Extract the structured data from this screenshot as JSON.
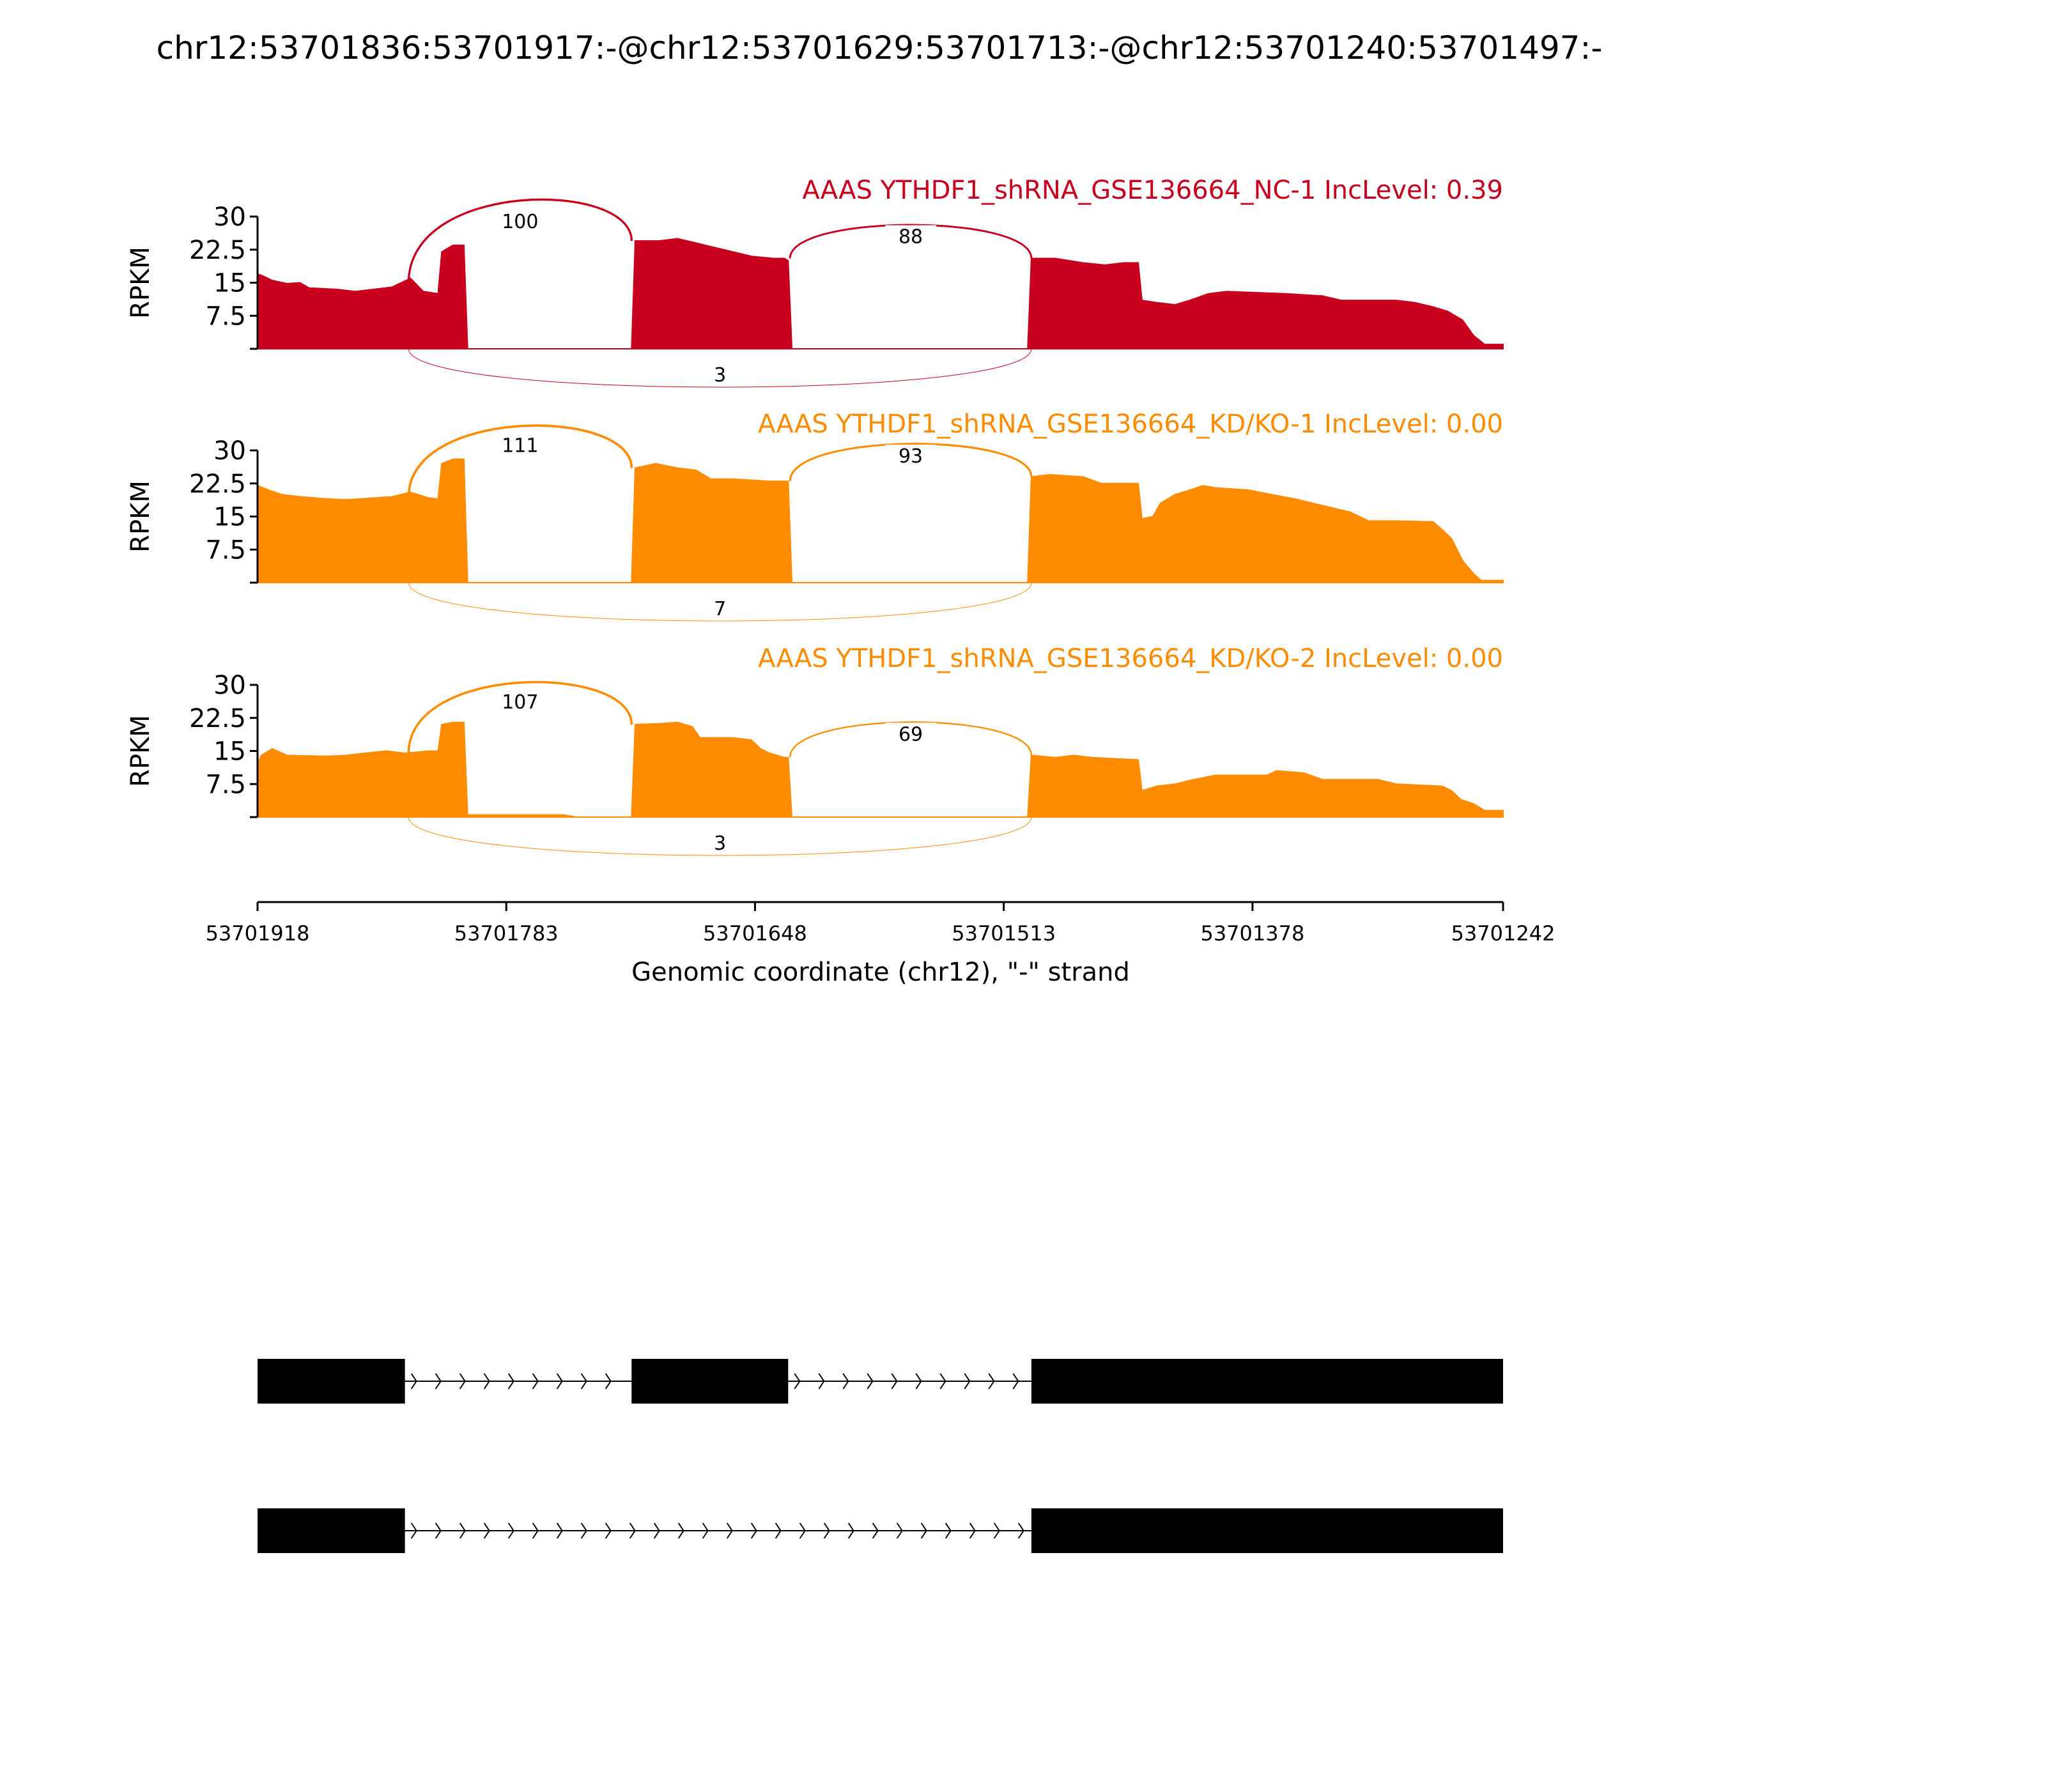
{
  "title": "chr12:53701836:53701917:-@chr12:53701629:53701713:-@chr12:53701240:53701497:-",
  "chart_data": {
    "type": "area",
    "title": "chr12:53701836:53701917:-@chr12:53701629:53701713:-@chr12:53701240:53701497:-",
    "xlabel": "Genomic coordinate (chr12), \"-\" strand",
    "ylabel": "RPKM",
    "xlim": [
      53701918,
      53701242
    ],
    "x_ticks": [
      53701918,
      53701783,
      53701648,
      53701513,
      53701378,
      53701242
    ],
    "x_tick_labels": [
      "53701918",
      "53701783",
      "53701648",
      "53701513",
      "53701378",
      "53701242"
    ],
    "ylim": [
      0,
      30
    ],
    "y_ticks": [
      7.5,
      15,
      22.5,
      30
    ],
    "y_tick_labels": [
      "7.5",
      "15",
      "22.5",
      "30"
    ],
    "exons": [
      {
        "start": 53701918,
        "end": 53701838
      },
      {
        "start": 53701715,
        "end": 53701630
      },
      {
        "start": 53701498,
        "end": 53701242
      }
    ],
    "isoforms": [
      {
        "exons": [
          [
            53701918,
            53701838
          ],
          [
            53701715,
            53701630
          ],
          [
            53701498,
            53701242
          ]
        ]
      },
      {
        "exons": [
          [
            53701918,
            53701838
          ],
          [
            53701498,
            53701242
          ]
        ]
      }
    ],
    "series": [
      {
        "name": "AAAS YTHDF1_shRNA_GSE136664_NC-1 IncLevel: 0.39",
        "color": "#c8001e",
        "coverage": [
          [
            53701918,
            17
          ],
          [
            53701915,
            16.5
          ],
          [
            53701910,
            15.5
          ],
          [
            53701902,
            14.8
          ],
          [
            53701895,
            15
          ],
          [
            53701890,
            13.8
          ],
          [
            53701875,
            13.5
          ],
          [
            53701865,
            13
          ],
          [
            53701855,
            13.5
          ],
          [
            53701845,
            14
          ],
          [
            53701840,
            15
          ],
          [
            53701835,
            16
          ],
          [
            53701828,
            13
          ],
          [
            53701820,
            12.5
          ],
          [
            53701818,
            22
          ],
          [
            53701812,
            23.5
          ],
          [
            53701808,
            23.5
          ],
          [
            53701806,
            23.5
          ],
          [
            53701804,
            0
          ],
          [
            53701715,
            0
          ],
          [
            53701713,
            24.5
          ],
          [
            53701700,
            24.5
          ],
          [
            53701690,
            25
          ],
          [
            53701680,
            24
          ],
          [
            53701670,
            23
          ],
          [
            53701660,
            22
          ],
          [
            53701650,
            21
          ],
          [
            53701638,
            20.5
          ],
          [
            53701632,
            20.5
          ],
          [
            53701630,
            20
          ],
          [
            53701628,
            0
          ],
          [
            53701500,
            0
          ],
          [
            53701498,
            20.5
          ],
          [
            53701485,
            20.5
          ],
          [
            53701470,
            19.5
          ],
          [
            53701458,
            19
          ],
          [
            53701448,
            19.5
          ],
          [
            53701440,
            19.5
          ],
          [
            53701438,
            11
          ],
          [
            53701430,
            10.5
          ],
          [
            53701420,
            10
          ],
          [
            53701412,
            11
          ],
          [
            53701402,
            12.5
          ],
          [
            53701392,
            13
          ],
          [
            53701360,
            12.5
          ],
          [
            53701340,
            12
          ],
          [
            53701330,
            11
          ],
          [
            53701300,
            11
          ],
          [
            53701290,
            10.5
          ],
          [
            53701280,
            9.5
          ],
          [
            53701272,
            8.5
          ],
          [
            53701264,
            6.5
          ],
          [
            53701258,
            3
          ],
          [
            53701252,
            1
          ],
          [
            53701242,
            1
          ]
        ],
        "junctions": [
          {
            "from": 53701836,
            "to": 53701715,
            "count": 100,
            "side": "above"
          },
          {
            "from": 53701629,
            "to": 53701498,
            "count": 88,
            "side": "above"
          },
          {
            "from": 53701836,
            "to": 53701498,
            "count": 3,
            "side": "below"
          }
        ]
      },
      {
        "name": "AAAS YTHDF1_shRNA_GSE136664_KD/KO-1 IncLevel: 0.00",
        "color": "#ff8c00",
        "coverage": [
          [
            53701918,
            22
          ],
          [
            53701912,
            21
          ],
          [
            53701905,
            20
          ],
          [
            53701895,
            19.5
          ],
          [
            53701880,
            19
          ],
          [
            53701870,
            18.8
          ],
          [
            53701855,
            19.2
          ],
          [
            53701845,
            19.5
          ],
          [
            53701835,
            20.5
          ],
          [
            53701825,
            19.2
          ],
          [
            53701820,
            19
          ],
          [
            53701818,
            27
          ],
          [
            53701812,
            28
          ],
          [
            53701808,
            28
          ],
          [
            53701806,
            28
          ],
          [
            53701804,
            0
          ],
          [
            53701715,
            0
          ],
          [
            53701713,
            26
          ],
          [
            53701702,
            27
          ],
          [
            53701690,
            26
          ],
          [
            53701680,
            25.5
          ],
          [
            53701672,
            23.5
          ],
          [
            53701660,
            23.5
          ],
          [
            53701640,
            23
          ],
          [
            53701632,
            23
          ],
          [
            53701630,
            23
          ],
          [
            53701628,
            0
          ],
          [
            53701500,
            0
          ],
          [
            53701498,
            24
          ],
          [
            53701488,
            24.5
          ],
          [
            53701470,
            24
          ],
          [
            53701460,
            22.5
          ],
          [
            53701440,
            22.5
          ],
          [
            53701438,
            14.5
          ],
          [
            53701432,
            15
          ],
          [
            53701428,
            18
          ],
          [
            53701420,
            20
          ],
          [
            53701412,
            21
          ],
          [
            53701405,
            22
          ],
          [
            53701398,
            21.5
          ],
          [
            53701380,
            21
          ],
          [
            53701368,
            20
          ],
          [
            53701355,
            19
          ],
          [
            53701340,
            17.5
          ],
          [
            53701325,
            16
          ],
          [
            53701315,
            14
          ],
          [
            53701300,
            14
          ],
          [
            53701280,
            13.8
          ],
          [
            53701275,
            12
          ],
          [
            53701270,
            10
          ],
          [
            53701264,
            5
          ],
          [
            53701258,
            2
          ],
          [
            53701254,
            0.5
          ],
          [
            53701242,
            0.5
          ]
        ],
        "junctions": [
          {
            "from": 53701836,
            "to": 53701715,
            "count": 111,
            "side": "above"
          },
          {
            "from": 53701629,
            "to": 53701498,
            "count": 93,
            "side": "above"
          },
          {
            "from": 53701836,
            "to": 53701498,
            "count": 7,
            "side": "below"
          }
        ]
      },
      {
        "name": "AAAS YTHDF1_shRNA_GSE136664_KD/KO-2 IncLevel: 0.00",
        "color": "#ff8c00",
        "coverage": [
          [
            53701918,
            12
          ],
          [
            53701916,
            14
          ],
          [
            53701910,
            15.5
          ],
          [
            53701902,
            14
          ],
          [
            53701880,
            13.8
          ],
          [
            53701870,
            14
          ],
          [
            53701860,
            14.5
          ],
          [
            53701848,
            15
          ],
          [
            53701838,
            14.5
          ],
          [
            53701825,
            15
          ],
          [
            53701820,
            15
          ],
          [
            53701818,
            21
          ],
          [
            53701812,
            21.5
          ],
          [
            53701808,
            21.5
          ],
          [
            53701806,
            21.5
          ],
          [
            53701804,
            0.5
          ],
          [
            53701752,
            0.5
          ],
          [
            53701745,
            0
          ],
          [
            53701715,
            0
          ],
          [
            53701713,
            21
          ],
          [
            53701700,
            21.2
          ],
          [
            53701690,
            21.5
          ],
          [
            53701682,
            20.5
          ],
          [
            53701678,
            18
          ],
          [
            53701660,
            18
          ],
          [
            53701650,
            17.5
          ],
          [
            53701645,
            15.5
          ],
          [
            53701640,
            14.5
          ],
          [
            53701632,
            13.5
          ],
          [
            53701630,
            13.5
          ],
          [
            53701628,
            0
          ],
          [
            53701500,
            0
          ],
          [
            53701498,
            14
          ],
          [
            53701485,
            13.5
          ],
          [
            53701475,
            14
          ],
          [
            53701465,
            13.5
          ],
          [
            53701440,
            13
          ],
          [
            53701438,
            6
          ],
          [
            53701430,
            7
          ],
          [
            53701420,
            7.5
          ],
          [
            53701410,
            8.5
          ],
          [
            53701398,
            9.5
          ],
          [
            53701370,
            9.5
          ],
          [
            53701365,
            10.5
          ],
          [
            53701350,
            10
          ],
          [
            53701340,
            8.5
          ],
          [
            53701310,
            8.5
          ],
          [
            53701300,
            7.5
          ],
          [
            53701275,
            7
          ],
          [
            53701270,
            6
          ],
          [
            53701265,
            4
          ],
          [
            53701258,
            3
          ],
          [
            53701252,
            1.5
          ],
          [
            53701242,
            1.5
          ]
        ],
        "junctions": [
          {
            "from": 53701836,
            "to": 53701715,
            "count": 107,
            "side": "above"
          },
          {
            "from": 53701629,
            "to": 53701498,
            "count": 69,
            "side": "above"
          },
          {
            "from": 53701836,
            "to": 53701498,
            "count": 3,
            "side": "below"
          }
        ]
      }
    ]
  }
}
